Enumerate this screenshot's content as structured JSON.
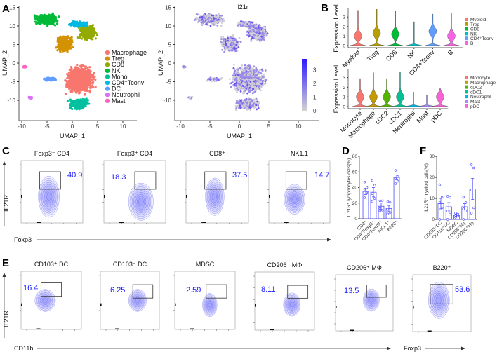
{
  "panel_labels": {
    "A": "A",
    "B": "B",
    "C": "C",
    "D": "D",
    "E": "E",
    "F": "F"
  },
  "chart_data": [
    {
      "id": "umap_clusters",
      "type": "scatter",
      "xlabel": "UMAP_1",
      "ylabel": "UMAP_2",
      "xticks": [
        -10,
        -5,
        0,
        5,
        10
      ],
      "yticks": [
        -10,
        -5,
        0,
        5,
        10,
        15
      ],
      "legend_position": "right",
      "clusters": [
        {
          "name": "Macrophage",
          "color": "#F8766D",
          "center": [
            1.5,
            -4.5
          ],
          "spread": [
            3.4,
            4.4
          ]
        },
        {
          "name": "Treg",
          "color": "#D39200",
          "center": [
            -1.5,
            5.2
          ],
          "spread": [
            2.0,
            2.6
          ]
        },
        {
          "name": "CD8",
          "color": "#93AA00",
          "center": [
            3.0,
            8.3
          ],
          "spread": [
            2.2,
            2.6
          ]
        },
        {
          "name": "NK",
          "color": "#00BA38",
          "center": [
            -5.0,
            11.8
          ],
          "spread": [
            2.8,
            1.9
          ]
        },
        {
          "name": "Mono",
          "color": "#00C19F",
          "center": [
            1.3,
            -11.0
          ],
          "spread": [
            2.4,
            1.8
          ]
        },
        {
          "name": "CD4⁺Tconv",
          "color": "#00B9E3",
          "center": [
            1.2,
            10.5
          ],
          "spread": [
            2.2,
            1.0
          ]
        },
        {
          "name": "DC",
          "color": "#619CFF",
          "center": [
            -4.2,
            -4.3
          ],
          "spread": [
            1.6,
            0.6
          ]
        },
        {
          "name": "Neutrophil",
          "color": "#DB72FB",
          "center": [
            -8.3,
            -9.3
          ],
          "spread": [
            0.4,
            0.3
          ]
        },
        {
          "name": "Mast",
          "color": "#FF61C3",
          "center": [
            -9.4,
            -1.0
          ],
          "spread": [
            0.4,
            0.3
          ]
        }
      ]
    },
    {
      "id": "umap_il21r",
      "type": "scatter",
      "title": "Il21r",
      "xlabel": "UMAP_1",
      "ylabel": "UMAP_2",
      "xticks": [
        -10,
        -5,
        0,
        5,
        10
      ],
      "yticks": [
        -10,
        -5,
        0,
        5,
        10,
        15
      ],
      "colorbar": {
        "ticks": [
          0,
          1,
          2,
          3
        ],
        "low_color": "#d3d3d3",
        "high_color": "#2b1bff"
      }
    },
    {
      "id": "violin_major",
      "type": "violin",
      "ylabel": "Expression Level",
      "yticks": [
        0,
        1,
        2,
        3
      ],
      "groups": [
        {
          "name": "Myeloid",
          "color": "#F8766D",
          "max": 3.7,
          "mode": 1.0
        },
        {
          "name": "Treg",
          "color": "#B79F00",
          "max": 3.8,
          "mode": 1.3
        },
        {
          "name": "CD8",
          "color": "#00BA38",
          "max": 3.6,
          "mode": 1.2
        },
        {
          "name": "NK",
          "color": "#00BFC4",
          "max": 2.5,
          "mode": 0
        },
        {
          "name": "CD4+Tconv",
          "color": "#619CFF",
          "max": 3.3,
          "mode": 1.5
        },
        {
          "name": "B",
          "color": "#F564E3",
          "max": 3.4,
          "mode": 1.0
        }
      ],
      "legend": [
        "Myeloid",
        "Treg",
        "CD8",
        "NK",
        "CD4⁺Tconv",
        "B"
      ]
    },
    {
      "id": "violin_myeloid",
      "type": "violin",
      "ylabel": "Expression Level",
      "yticks": [
        0,
        1,
        2,
        3
      ],
      "groups": [
        {
          "name": "Monocyte",
          "color": "#F8766D",
          "max": 2.9,
          "mode": 1.0
        },
        {
          "name": "Macrophage",
          "color": "#C49A00",
          "max": 3.5,
          "mode": 1.0
        },
        {
          "name": "cDC2",
          "color": "#53B400",
          "max": 2.9,
          "mode": 1.0
        },
        {
          "name": "cDC1",
          "color": "#00C094",
          "max": 3.6,
          "mode": 1.0
        },
        {
          "name": "Neutrophil",
          "color": "#00B6EB",
          "max": 1.5,
          "mode": 0
        },
        {
          "name": "Mast",
          "color": "#A58AFF",
          "max": 1.2,
          "mode": 0
        },
        {
          "name": "pDC",
          "color": "#FB61D7",
          "max": 1.9,
          "mode": 1.0
        }
      ],
      "legend": [
        "Monocyte",
        "Macrophage",
        "cDC2",
        "cDC1",
        "Neutrophil",
        "Mast",
        "pDC"
      ]
    },
    {
      "id": "flow_lymphocytes",
      "type": "flow-contour",
      "xlabel": "Foxp3",
      "ylabel": "IL21R",
      "plots": [
        {
          "title": "Foxp3⁻ CD4",
          "percent": "40.9"
        },
        {
          "title": "Foxp3⁺ CD4",
          "percent": "18.3"
        },
        {
          "title": "CD8⁺",
          "percent": "37.5"
        },
        {
          "title": "NK1.1",
          "percent": "14.7"
        }
      ]
    },
    {
      "id": "bar_lymphocytes",
      "type": "bar",
      "ylabel": "IL21R⁺ lymphocytes cells(%)",
      "ylim": [
        0,
        80
      ],
      "yticks": [
        0,
        20,
        40,
        60,
        80
      ],
      "bar_color": "#4a4aff",
      "categories": [
        "CD8⁺",
        "CD4⁺Foxp3⁻",
        "CD4⁺Foxp3⁺",
        "NK1.1⁺",
        "B220⁺"
      ],
      "values": [
        35,
        34,
        16,
        13,
        53
      ],
      "sem": [
        4,
        6,
        4,
        4,
        3
      ],
      "points": [
        [
          47,
          40,
          38,
          33,
          27
        ],
        [
          49,
          43,
          32,
          26,
          22
        ],
        [
          23,
          23,
          13,
          11,
          10
        ],
        [
          22,
          21,
          12,
          8,
          6
        ],
        [
          62,
          54,
          51,
          48,
          45
        ]
      ]
    },
    {
      "id": "flow_myeloid",
      "type": "flow-contour",
      "xlabel": "CD11b",
      "xlabel2": "Foxp3",
      "ylabel": "IL21R",
      "plots": [
        {
          "title": "CD103⁺ DC",
          "percent": "16.4"
        },
        {
          "title": "CD103⁻ DC",
          "percent": "6.25"
        },
        {
          "title": "MDSC",
          "percent": "2.59"
        },
        {
          "title": "CD206⁻ MΦ",
          "percent": "8.11"
        },
        {
          "title": "CD206⁺ MΦ",
          "percent": "13.5"
        },
        {
          "title": "B220⁺",
          "percent": "53.6"
        }
      ]
    },
    {
      "id": "bar_myeloid",
      "type": "bar",
      "ylabel": "IL21R⁺ myeloid cells(%)",
      "ylim": [
        0,
        30
      ],
      "yticks": [
        0,
        10,
        20,
        30
      ],
      "bar_color": "#4a4aff",
      "categories": [
        "CD103⁺DC",
        "CD11b⁺DC",
        "MDSC",
        "CD206⁻Mφ",
        "CD206⁺Mφ"
      ],
      "values": [
        7.5,
        6,
        2,
        6,
        14.5
      ],
      "sem": [
        2.5,
        2,
        0.5,
        1.5,
        5
      ],
      "points": [
        [
          16.5,
          10.5,
          8,
          5.5,
          0
        ],
        [
          11,
          10.5,
          4,
          2.5,
          0
        ],
        [
          3,
          2.5,
          2,
          1.5,
          1
        ],
        [
          10.5,
          8,
          5,
          4,
          0
        ],
        [
          26,
          24.5,
          14,
          5.5,
          3
        ]
      ]
    }
  ]
}
